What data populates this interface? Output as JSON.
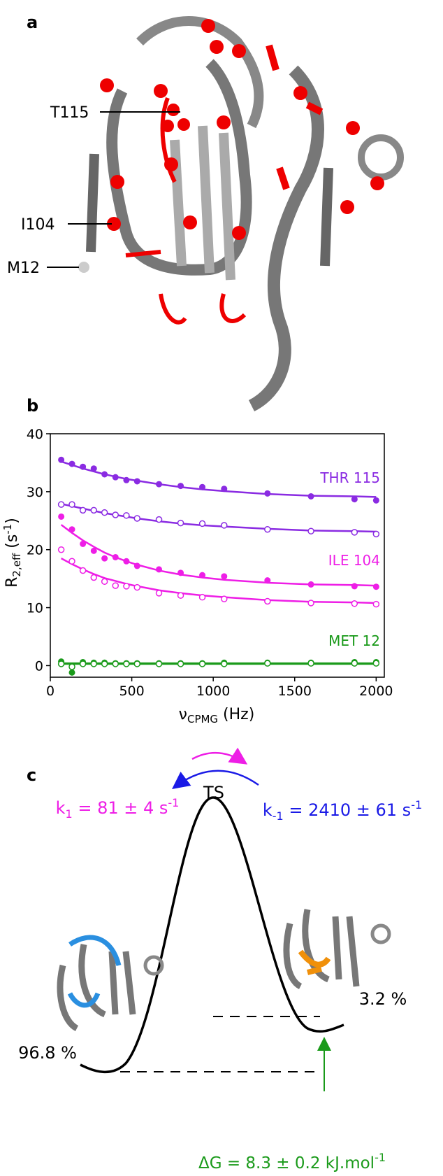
{
  "panel_labels": [
    "a",
    "b",
    "c"
  ],
  "structure": {
    "labels": [
      "T115",
      "I104",
      "M12"
    ]
  },
  "chart_data": {
    "type": "scatter",
    "x_label": {
      "symbol": "ν",
      "sub": "CPMG",
      "unit": " (Hz)"
    },
    "y_label": {
      "symbol": "R",
      "sub": "2,eff",
      "unit": " (s",
      "sup": "-1",
      "close": ")"
    },
    "x": [
      67,
      133,
      200,
      267,
      333,
      400,
      467,
      533,
      667,
      800,
      933,
      1067,
      1333,
      1600,
      1867,
      2000
    ],
    "xlim": [
      0,
      2050
    ],
    "xticks": [
      0,
      500,
      1000,
      1500,
      2000
    ],
    "ylim": [
      -2,
      40
    ],
    "yticks": [
      0,
      10,
      20,
      30,
      40
    ],
    "series": [
      {
        "name": "THR 115",
        "color": "#8a2be2",
        "values": [
          35.5,
          34.8,
          34.3,
          34,
          33,
          32.5,
          32,
          31.8,
          31.3,
          31,
          30.8,
          30.5,
          29.7,
          29.2,
          28.7,
          28.5
        ],
        "fit": [
          35.2,
          34.6,
          34.0,
          33.5,
          33.0,
          32.6,
          32.2,
          31.9,
          31.3,
          30.8,
          30.4,
          30.1,
          29.6,
          29.3,
          29.2,
          29.1
        ],
        "open_values": [
          27.8,
          27.8,
          26.8,
          26.8,
          26.4,
          26,
          25.9,
          25.4,
          25.2,
          24.6,
          24.5,
          24.2,
          23.5,
          23.2,
          23,
          22.7
        ],
        "open_fit": [
          27.9,
          27.5,
          27.1,
          26.7,
          26.3,
          26.0,
          25.7,
          25.4,
          24.9,
          24.5,
          24.2,
          24.0,
          23.6,
          23.3,
          23.2,
          23.1
        ]
      },
      {
        "name": "ILE 104",
        "color": "#ee1ee6",
        "values": [
          25.7,
          23.5,
          21,
          19.8,
          18.5,
          18.7,
          18,
          17.2,
          16.6,
          16,
          15.6,
          15.4,
          14.7,
          14,
          13.7,
          13.6
        ],
        "fit": [
          24.3,
          22.9,
          21.6,
          20.5,
          19.5,
          18.7,
          18.0,
          17.4,
          16.4,
          15.7,
          15.2,
          14.8,
          14.3,
          14.0,
          13.9,
          13.8
        ],
        "open_values": [
          20,
          18,
          16.4,
          15.2,
          14.5,
          13.8,
          13.7,
          13.5,
          12.5,
          12.1,
          11.8,
          11.5,
          11.1,
          10.8,
          10.7,
          10.6
        ],
        "open_fit": [
          18.5,
          17.5,
          16.6,
          15.8,
          15.1,
          14.6,
          14.1,
          13.7,
          13.0,
          12.5,
          12.1,
          11.8,
          11.3,
          11.0,
          10.9,
          10.8
        ]
      },
      {
        "name": "MET 12",
        "color": "#1a9a1a",
        "values": [
          0.7,
          -1.2,
          0.6,
          0.5,
          0.5,
          0.4,
          0.4,
          0.4,
          0.4,
          0.4,
          0.4,
          0.5,
          0.5,
          0.5,
          0.6,
          0.6
        ],
        "fit": [
          0.4,
          0.4,
          0.4,
          0.4,
          0.4,
          0.4,
          0.4,
          0.4,
          0.4,
          0.4,
          0.4,
          0.4,
          0.4,
          0.4,
          0.4,
          0.4
        ],
        "open_values": [
          0.3,
          -0.2,
          0.3,
          0.3,
          0.3,
          0.3,
          0.3,
          0.3,
          0.3,
          0.3,
          0.3,
          0.3,
          0.4,
          0.4,
          0.4,
          0.4
        ],
        "open_fit": [
          0.3,
          0.3,
          0.3,
          0.3,
          0.3,
          0.3,
          0.3,
          0.3,
          0.3,
          0.3,
          0.3,
          0.3,
          0.3,
          0.3,
          0.3,
          0.3
        ]
      }
    ]
  },
  "energy": {
    "ts": "TS",
    "k1": {
      "symbol": "k",
      "sub": "1",
      "text": " = 81 ± 4 s",
      "sup": "-1"
    },
    "k_minus1": {
      "symbol": "k",
      "sub": "-1",
      "text": " = 2410 ± 61 s",
      "sup": "-1"
    },
    "ground_population": "96.8 %",
    "excited_population": "3.2 %",
    "delta_g": {
      "text": "ΔG = 8.3 ± 0.2 kJ.mol",
      "sup": "-1"
    }
  }
}
